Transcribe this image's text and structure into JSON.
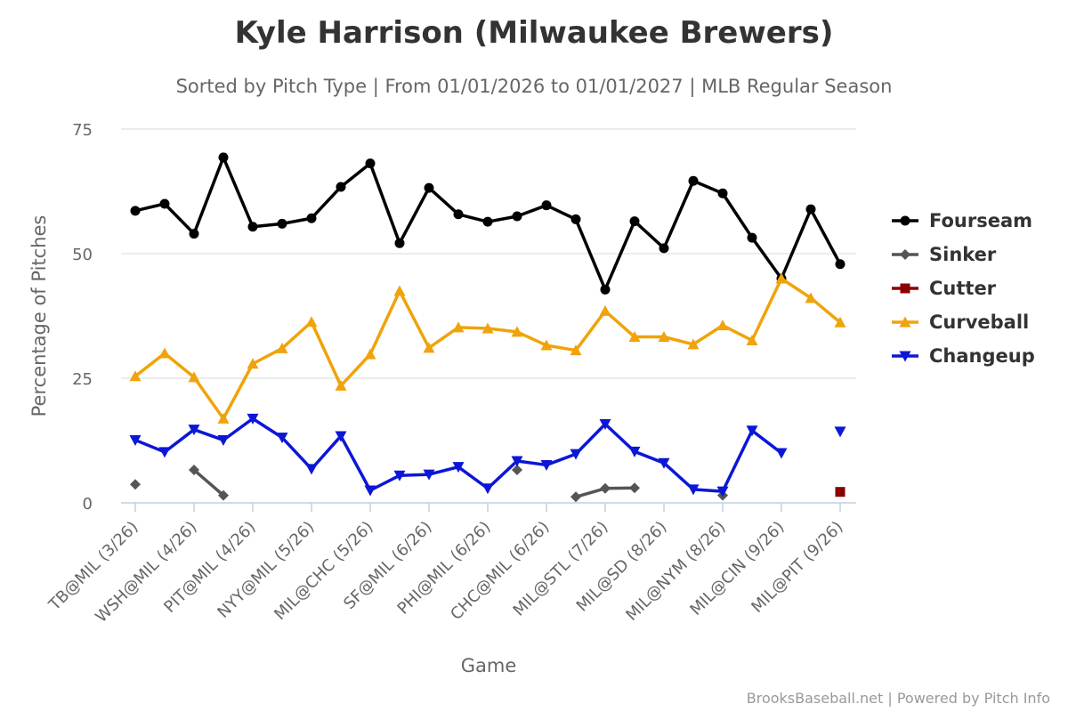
{
  "chart_data": {
    "type": "line",
    "title": "Kyle Harrison (Milwaukee Brewers)",
    "subtitle": "Sorted by Pitch Type | From 01/01/2026 to 01/01/2027 | MLB Regular Season",
    "xlabel": "Game",
    "ylabel": "Percentage of Pitches",
    "ylim": [
      0,
      75
    ],
    "yticks": [
      0,
      25,
      50,
      75
    ],
    "grid": true,
    "legend_position": "right",
    "credits": "BrooksBaseball.net | Powered by Pitch Info",
    "categories": [
      "TB@MIL (3/26)",
      "",
      "WSH@MIL (4/26)",
      "",
      "PIT@MIL (4/26)",
      "",
      "NYY@MIL (5/26)",
      "",
      "MIL@CHC (5/26)",
      "",
      "SF@MIL (6/26)",
      "",
      "PHI@MIL (6/26)",
      "",
      "CHC@MIL (6/26)",
      "",
      "MIL@STL (7/26)",
      "",
      "MIL@SD (8/26)",
      "",
      "MIL@NYM (8/26)",
      "",
      "MIL@CIN (9/26)",
      "",
      "MIL@PIT (9/26)"
    ],
    "series": [
      {
        "name": "Fourseam",
        "color": "#000000",
        "marker": "circle",
        "values": [
          58.6,
          60.0,
          54.0,
          69.3,
          55.4,
          56.0,
          57.1,
          63.4,
          68.1,
          52.1,
          63.2,
          57.9,
          56.4,
          57.5,
          59.7,
          56.9,
          42.8,
          56.5,
          51.1,
          64.6,
          62.1,
          53.2,
          45.0,
          58.9,
          47.9
        ]
      },
      {
        "name": "Sinker",
        "color": "#555555",
        "marker": "diamond",
        "values": [
          3.7,
          null,
          6.6,
          1.5,
          null,
          null,
          null,
          null,
          null,
          null,
          null,
          null,
          null,
          6.6,
          null,
          1.2,
          2.9,
          3.0,
          null,
          null,
          1.5,
          null,
          null,
          null,
          null
        ]
      },
      {
        "name": "Cutter",
        "color": "#8b0000",
        "marker": "square",
        "values": [
          null,
          null,
          null,
          null,
          null,
          null,
          null,
          null,
          null,
          null,
          null,
          null,
          null,
          null,
          null,
          null,
          null,
          null,
          null,
          null,
          null,
          null,
          null,
          null,
          2.2
        ]
      },
      {
        "name": "Curveball",
        "color": "#f0a30a",
        "marker": "triangle",
        "values": [
          25.4,
          30.0,
          25.2,
          16.9,
          27.9,
          31.0,
          36.3,
          23.5,
          29.8,
          42.5,
          31.1,
          35.2,
          35.0,
          34.3,
          31.6,
          30.6,
          38.5,
          33.3,
          33.3,
          31.8,
          35.6,
          32.6,
          45.0,
          41.1,
          36.2
        ]
      },
      {
        "name": "Changeup",
        "color": "#0b17d6",
        "marker": "triangle-down",
        "values": [
          12.6,
          10.2,
          14.7,
          12.6,
          16.9,
          13.1,
          6.8,
          13.4,
          2.5,
          5.5,
          5.7,
          7.2,
          2.9,
          8.4,
          7.6,
          9.8,
          15.8,
          10.3,
          8.0,
          2.7,
          2.3,
          14.5,
          10.0,
          null,
          14.3
        ]
      }
    ]
  }
}
